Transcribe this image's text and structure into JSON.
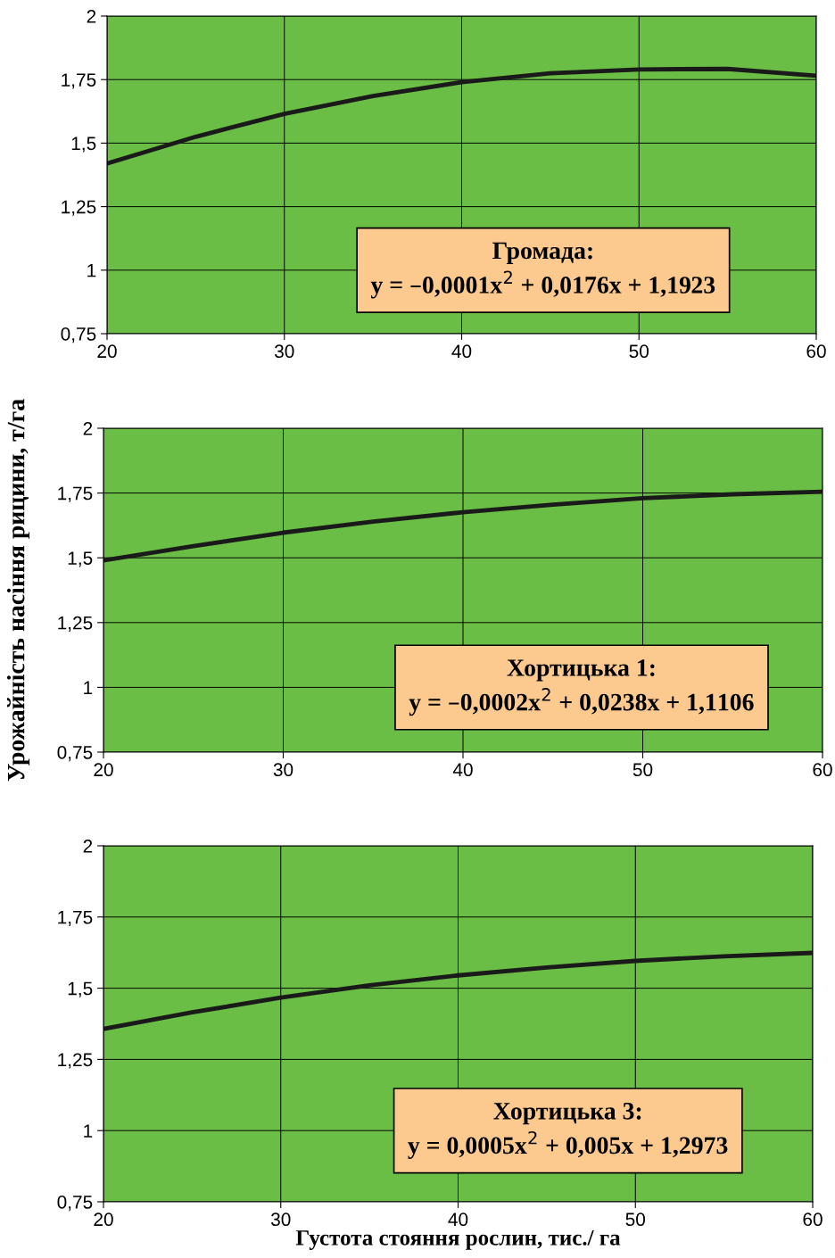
{
  "chart_data": [
    {
      "type": "line",
      "x": [
        20,
        25,
        30,
        35,
        40,
        45,
        50,
        55,
        60
      ],
      "series": [
        {
          "color": "#1a1a1a",
          "values": [
            1.42,
            1.525,
            1.615,
            1.685,
            1.74,
            1.775,
            1.79,
            1.792,
            1.765
          ]
        }
      ],
      "xlim": [
        20,
        60
      ],
      "xticks": [
        20,
        30,
        40,
        50,
        60
      ],
      "ylim": [
        0.75,
        2
      ],
      "yticks": [
        {
          "value": 0.75,
          "label": "0,75"
        },
        {
          "value": 1,
          "label": "1"
        },
        {
          "value": 1.25,
          "label": "1,25"
        },
        {
          "value": 1.5,
          "label": "1,5"
        },
        {
          "value": 1.75,
          "label": "1,75"
        },
        {
          "value": 2,
          "label": "2"
        }
      ],
      "grid": true,
      "marker": "none",
      "annotations": [
        "Громада:\ny = –0,0001x$^{2}$ + 0,0176x + 1,1923"
      ]
    },
    {
      "type": "line",
      "x": [
        20,
        25,
        30,
        35,
        40,
        45,
        50,
        55,
        60
      ],
      "series": [
        {
          "color": "#1a1a1a",
          "values": [
            1.49,
            1.545,
            1.597,
            1.64,
            1.676,
            1.705,
            1.73,
            1.745,
            1.755
          ]
        }
      ],
      "xlim": [
        20,
        60
      ],
      "xticks": [
        20,
        30,
        40,
        50,
        60
      ],
      "ylim": [
        0.75,
        2
      ],
      "yticks": [
        {
          "value": 0.75,
          "label": "0,75"
        },
        {
          "value": 1,
          "label": "1"
        },
        {
          "value": 1.25,
          "label": "1,25"
        },
        {
          "value": 1.5,
          "label": "1,5"
        },
        {
          "value": 1.75,
          "label": "1,75"
        },
        {
          "value": 2,
          "label": "2"
        }
      ],
      "grid": true,
      "marker": "none",
      "ylabel": "Урожайність насіння рицини, т/га",
      "annotations": [
        "Хортицька 1:\ny = –0,0002x$^{2}$ + 0,0238x + 1,1106"
      ]
    },
    {
      "type": "line",
      "x": [
        20,
        25,
        30,
        35,
        40,
        45,
        50,
        55,
        60
      ],
      "series": [
        {
          "color": "#1a1a1a",
          "values": [
            1.357,
            1.415,
            1.467,
            1.51,
            1.545,
            1.573,
            1.596,
            1.612,
            1.624
          ]
        }
      ],
      "xlim": [
        20,
        60
      ],
      "xticks": [
        20,
        30,
        40,
        50,
        60
      ],
      "ylim": [
        0.75,
        2
      ],
      "yticks": [
        {
          "value": 0.75,
          "label": "0,75"
        },
        {
          "value": 1,
          "label": "1"
        },
        {
          "value": 1.25,
          "label": "1,25"
        },
        {
          "value": 1.5,
          "label": "1,5"
        },
        {
          "value": 1.75,
          "label": "1,75"
        },
        {
          "value": 2,
          "label": "2"
        }
      ],
      "grid": true,
      "marker": "none",
      "xlabel": "Густота стояння рослин, тис./ га",
      "annotations": [
        "Хортицька 3:\ny = 0,0005x$^{2}$ + 0,005x + 1,2973"
      ]
    }
  ]
}
